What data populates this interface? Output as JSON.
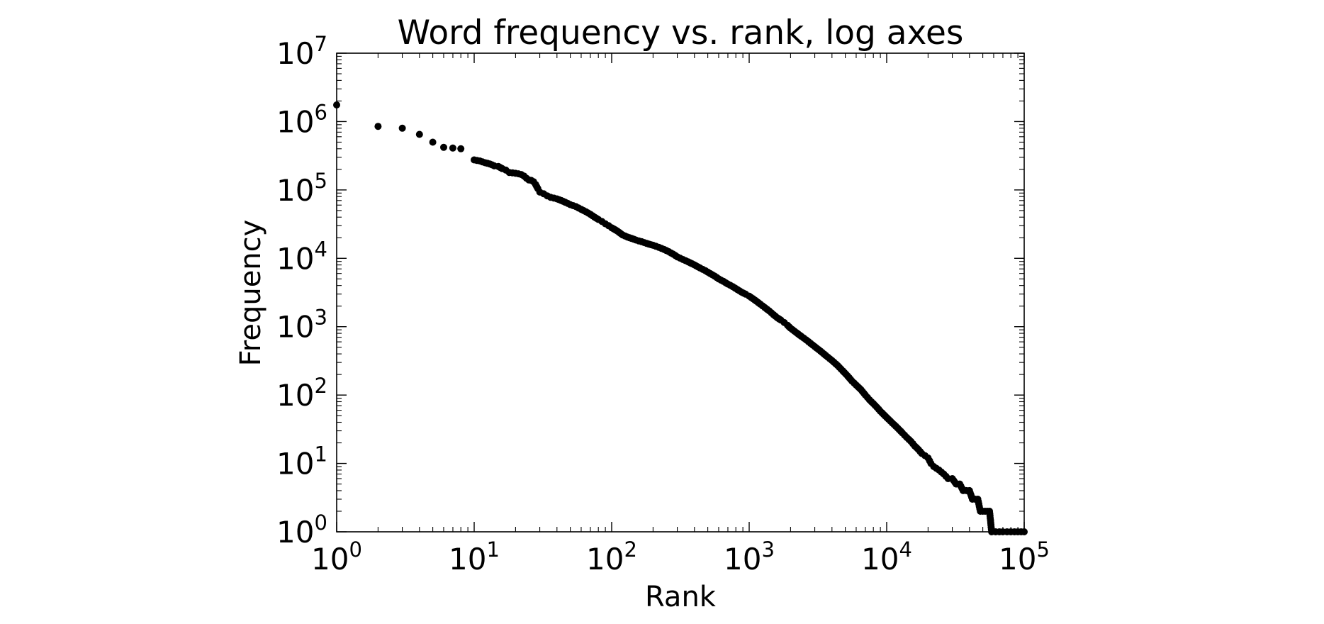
{
  "chart_data": {
    "type": "scatter",
    "title": "Word frequency vs. rank, log axes",
    "xlabel": "Rank",
    "ylabel": "Frequency",
    "xscale": "log",
    "yscale": "log",
    "xlim": [
      1,
      100000
    ],
    "ylim": [
      1,
      10000000
    ],
    "grid": false,
    "legend": "none",
    "marker_color": "#000000",
    "x_ticks": [
      {
        "value": 1,
        "base": "10",
        "exp": "0"
      },
      {
        "value": 10,
        "base": "10",
        "exp": "1"
      },
      {
        "value": 100,
        "base": "10",
        "exp": "2"
      },
      {
        "value": 1000,
        "base": "10",
        "exp": "3"
      },
      {
        "value": 10000,
        "base": "10",
        "exp": "4"
      },
      {
        "value": 100000,
        "base": "10",
        "exp": "5"
      }
    ],
    "y_ticks": [
      {
        "value": 1,
        "base": "10",
        "exp": "0"
      },
      {
        "value": 10,
        "base": "10",
        "exp": "1"
      },
      {
        "value": 100,
        "base": "10",
        "exp": "2"
      },
      {
        "value": 1000,
        "base": "10",
        "exp": "3"
      },
      {
        "value": 10000,
        "base": "10",
        "exp": "4"
      },
      {
        "value": 100000,
        "base": "10",
        "exp": "5"
      },
      {
        "value": 1000000,
        "base": "10",
        "exp": "6"
      },
      {
        "value": 10000000,
        "base": "10",
        "exp": "7"
      }
    ],
    "points": [
      [
        1,
        1750000
      ],
      [
        2,
        850000
      ],
      [
        3,
        800000
      ],
      [
        4,
        650000
      ],
      [
        5,
        500000
      ],
      [
        6,
        420000
      ],
      [
        7,
        410000
      ],
      [
        8,
        400000
      ],
      [
        10,
        275000
      ],
      [
        11,
        265000
      ],
      [
        12,
        250000
      ],
      [
        13,
        240000
      ],
      [
        14,
        225000
      ],
      [
        15,
        220000
      ],
      [
        16,
        205000
      ],
      [
        17,
        195000
      ],
      [
        18,
        180000
      ],
      [
        19,
        178000
      ],
      [
        20,
        175000
      ],
      [
        21,
        172000
      ],
      [
        22,
        168000
      ],
      [
        23,
        160000
      ],
      [
        24,
        148000
      ],
      [
        25,
        140000
      ],
      [
        26,
        138000
      ],
      [
        27,
        132000
      ],
      [
        28,
        120000
      ],
      [
        29,
        105000
      ],
      [
        30,
        93000
      ],
      [
        32,
        88000
      ],
      [
        34,
        82000
      ],
      [
        36,
        78000
      ],
      [
        38,
        76000
      ],
      [
        40,
        74000
      ],
      [
        43,
        70000
      ],
      [
        46,
        66000
      ],
      [
        50,
        61000
      ],
      [
        55,
        57000
      ],
      [
        60,
        52000
      ],
      [
        65,
        48000
      ],
      [
        70,
        44000
      ],
      [
        75,
        40000
      ],
      [
        80,
        37000
      ],
      [
        85,
        34500
      ],
      [
        90,
        32000
      ],
      [
        95,
        30000
      ],
      [
        100,
        28000
      ],
      [
        110,
        25000
      ],
      [
        120,
        22000
      ],
      [
        130,
        20500
      ],
      [
        140,
        19500
      ],
      [
        150,
        18500
      ],
      [
        165,
        17500
      ],
      [
        180,
        16500
      ],
      [
        200,
        15500
      ],
      [
        220,
        14500
      ],
      [
        240,
        13500
      ],
      [
        260,
        12500
      ],
      [
        280,
        11500
      ],
      [
        300,
        10500
      ],
      [
        330,
        9600
      ],
      [
        360,
        8900
      ],
      [
        400,
        8000
      ],
      [
        440,
        7200
      ],
      [
        480,
        6600
      ],
      [
        520,
        6000
      ],
      [
        560,
        5500
      ],
      [
        600,
        5000
      ],
      [
        650,
        4600
      ],
      [
        700,
        4200
      ],
      [
        760,
        3850
      ],
      [
        820,
        3500
      ],
      [
        880,
        3200
      ],
      [
        940,
        3000
      ],
      [
        1000,
        2800
      ],
      [
        1100,
        2450
      ],
      [
        1200,
        2150
      ],
      [
        1300,
        1900
      ],
      [
        1400,
        1700
      ],
      [
        1500,
        1500
      ],
      [
        1600,
        1350
      ],
      [
        1700,
        1250
      ],
      [
        1800,
        1150
      ],
      [
        1900,
        1050
      ],
      [
        2000,
        950
      ],
      [
        2200,
        820
      ],
      [
        2400,
        720
      ],
      [
        2600,
        640
      ],
      [
        2800,
        570
      ],
      [
        3000,
        510
      ],
      [
        3300,
        440
      ],
      [
        3600,
        380
      ],
      [
        4000,
        320
      ],
      [
        4400,
        270
      ],
      [
        4800,
        225
      ],
      [
        5200,
        190
      ],
      [
        5600,
        160
      ],
      [
        6000,
        140
      ],
      [
        6500,
        120
      ],
      [
        7000,
        100
      ],
      [
        7500,
        85
      ],
      [
        8000,
        75
      ],
      [
        8500,
        66
      ],
      [
        9000,
        58
      ],
      [
        9500,
        52
      ],
      [
        10000,
        47
      ],
      [
        11000,
        39
      ],
      [
        12000,
        33
      ],
      [
        13000,
        28
      ],
      [
        14000,
        24
      ],
      [
        15000,
        21
      ],
      [
        16000,
        18
      ],
      [
        17000,
        16
      ],
      [
        18000,
        14
      ],
      [
        19000,
        13
      ],
      [
        20000,
        12
      ],
      [
        21000,
        10
      ],
      [
        22000,
        9
      ],
      [
        24000,
        8
      ],
      [
        26000,
        7
      ],
      [
        28000,
        6
      ],
      [
        30000,
        6
      ],
      [
        32000,
        5
      ],
      [
        34000,
        5
      ],
      [
        36000,
        4
      ],
      [
        38000,
        4
      ],
      [
        40000,
        4
      ],
      [
        42000,
        3
      ],
      [
        44000,
        3
      ],
      [
        46000,
        3
      ],
      [
        48000,
        2
      ],
      [
        50000,
        2
      ],
      [
        52000,
        2
      ],
      [
        54000,
        2
      ],
      [
        56000,
        2
      ],
      [
        58000,
        1
      ],
      [
        62000,
        1
      ],
      [
        66000,
        1
      ],
      [
        70000,
        1
      ],
      [
        75000,
        1
      ],
      [
        80000,
        1
      ],
      [
        85000,
        1
      ],
      [
        90000,
        1
      ],
      [
        95000,
        1
      ],
      [
        100000,
        1
      ]
    ]
  }
}
